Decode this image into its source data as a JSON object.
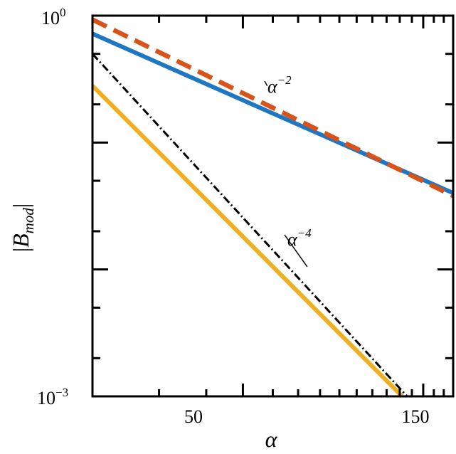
{
  "chart_data": {
    "type": "line",
    "xscale": "log",
    "yscale": "log",
    "xlim": [
      20,
      180
    ],
    "ylim": [
      0.001,
      1
    ],
    "xticks": [
      50,
      150
    ],
    "xtick_labels": [
      "50",
      "150"
    ],
    "ytick_labels": [
      {
        "value": 1,
        "base": "10",
        "exp": "0"
      },
      {
        "value": 0.001,
        "base": "10",
        "exp": "−3"
      }
    ],
    "xlabel": "α",
    "ylabel": {
      "base": "B",
      "sub": "mod"
    },
    "grid": false,
    "series": [
      {
        "color": "#1f77c4",
        "style": "solid",
        "x": [
          20,
          180
        ],
        "y": [
          0.72,
          0.04
        ]
      },
      {
        "color": "#d95319",
        "style": "dashed",
        "x": [
          20,
          180
        ],
        "y": [
          0.93,
          0.038
        ]
      },
      {
        "color": "#000000",
        "style": "dashdot",
        "x": [
          20,
          136
        ],
        "y": [
          0.5,
          0.001
        ]
      },
      {
        "color": "#edb120",
        "style": "solid",
        "x": [
          20,
          132
        ],
        "y": [
          0.28,
          0.001
        ]
      }
    ],
    "annotations": [
      {
        "base": "α",
        "exp": "−2",
        "x": 58,
        "y": 0.28
      },
      {
        "base": "α",
        "exp": "−4",
        "x": 74,
        "y": 0.0105
      }
    ]
  }
}
